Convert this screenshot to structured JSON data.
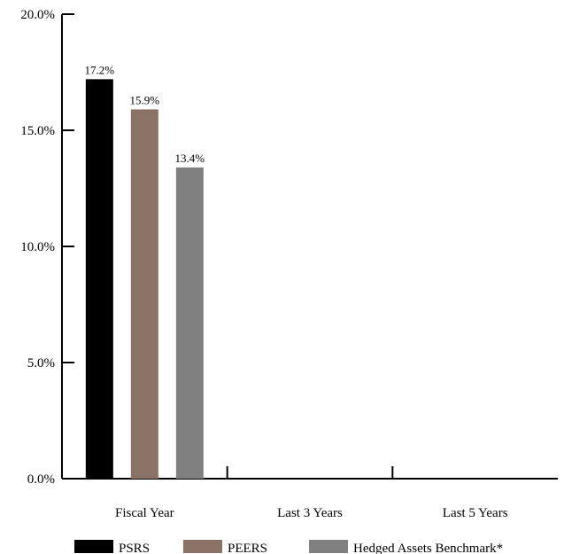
{
  "chart_data": {
    "type": "bar",
    "title": "",
    "xlabel": "",
    "ylabel": "",
    "categories": [
      "Fiscal Year",
      "Last 3 Years",
      "Last 5 Years"
    ],
    "series": [
      {
        "name": "PSRS",
        "color": "#000000",
        "values": [
          17.2,
          null,
          null
        ],
        "labels": [
          "17.2%",
          "",
          ""
        ]
      },
      {
        "name": "PEERS",
        "color": "#8a7267",
        "values": [
          15.9,
          null,
          null
        ],
        "labels": [
          "15.9%",
          "",
          ""
        ]
      },
      {
        "name": "Hedged Assets Benchmark*",
        "color": "#808080",
        "values": [
          13.4,
          null,
          null
        ],
        "labels": [
          "13.4%",
          "",
          ""
        ]
      }
    ],
    "ylim": [
      0,
      20
    ],
    "yticks": [
      0,
      5,
      10,
      15,
      20
    ],
    "ytick_labels": [
      "0.0%",
      "5.0%",
      "10.0%",
      "15.0%",
      "20.0%"
    ],
    "grid": false,
    "legend": {
      "position": "bottom"
    }
  }
}
